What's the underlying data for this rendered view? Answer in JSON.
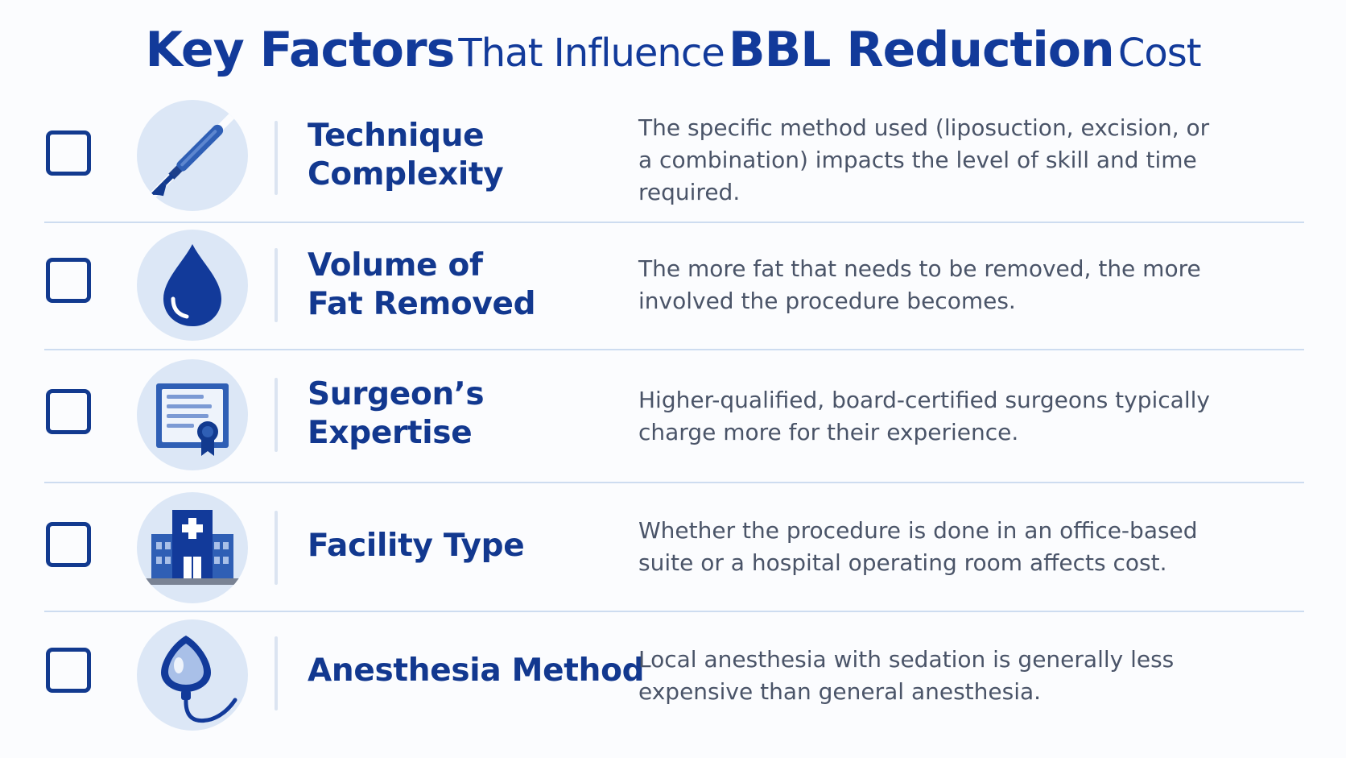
{
  "title": {
    "part1": "Key Factors",
    "part2": "That Influence",
    "part3": "BBL Reduction",
    "part4": "Cost"
  },
  "colors": {
    "primary": "#123a9a",
    "icon_bg": "#dce7f6",
    "icon_blue": "#2f5fb5",
    "text": "#4a5468",
    "divider": "#cddcf0"
  },
  "factors": [
    {
      "icon": "scalpel-icon",
      "heading": "Technique\nComplexity",
      "description": "The specific method used (liposuction, excision, or\na combination) impacts the level of skill and time\nrequired.",
      "checked": false
    },
    {
      "icon": "droplet-icon",
      "heading": "Volume of\nFat Removed",
      "description": "The more fat that needs to be removed, the more\ninvolved the procedure becomes.",
      "checked": false
    },
    {
      "icon": "certificate-icon",
      "heading": "Surgeon’s\nExpertise",
      "description": "Higher-qualified, board-certified surgeons typically\ncharge more for their experience.",
      "checked": false
    },
    {
      "icon": "hospital-icon",
      "heading": "Facility Type",
      "description": "Whether the procedure is done in an office-based\nsuite or a hospital operating room affects cost.",
      "checked": false
    },
    {
      "icon": "anesthesia-mask-icon",
      "heading": "Anesthesia Method",
      "description": "Local anesthesia with sedation is generally less\nexpensive than general anesthesia.",
      "checked": false
    }
  ]
}
